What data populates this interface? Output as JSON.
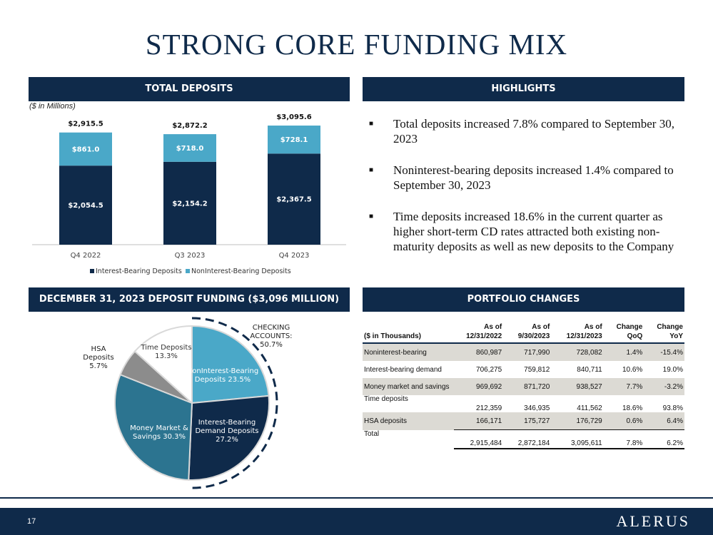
{
  "title": "STRONG CORE FUNDING MIX",
  "sections": {
    "total_deposits": "TOTAL DEPOSITS",
    "highlights": "HIGHLIGHTS",
    "deposit_funding": "DECEMBER 31, 2023 DEPOSIT FUNDING ($3,096 MILLION)",
    "portfolio_changes": "PORTFOLIO CHANGES"
  },
  "units_note": "($ in Millions)",
  "highlights": [
    "Total deposits increased 7.8% compared to September 30, 2023",
    "Noninterest-bearing deposits increased 1.4% compared to September 30, 2023",
    "Time deposits increased 18.6% in the current quarter as higher short-term CD rates attracted both existing non-maturity deposits as well as new deposits to the Company"
  ],
  "chart_data": [
    {
      "type": "bar",
      "stacked": true,
      "categories": [
        "Q4 2022",
        "Q3 2023",
        "Q4 2023"
      ],
      "series": [
        {
          "name": "Interest-Bearing Deposits",
          "color": "#0f2a4a",
          "values": [
            2054.5,
            2154.2,
            2367.5
          ],
          "labels": [
            "$2,054.5",
            "$2,154.2",
            "$2,367.5"
          ]
        },
        {
          "name": "NonInterest-Bearing Deposits",
          "color": "#4aa8c8",
          "values": [
            861.0,
            718.0,
            728.1
          ],
          "labels": [
            "$861.0",
            "$718.0",
            "$728.1"
          ]
        }
      ],
      "totals": [
        "$2,915.5",
        "$2,872.2",
        "$3,095.6"
      ],
      "ylim": [
        0,
        3300
      ],
      "legend": "bottom"
    },
    {
      "type": "pie",
      "slices": [
        {
          "name": "NonInterest-Bearing Deposits",
          "label": "NonInterest-Bearing Deposits 23.5%",
          "value": 23.5,
          "color": "#4aa8c8"
        },
        {
          "name": "Interest-Bearing Demand Deposits",
          "label": "Interest-Bearing Demand Deposits 27.2%",
          "value": 27.2,
          "color": "#0f2a4a"
        },
        {
          "name": "Money Market & Savings",
          "label": "Money Market & Savings 30.3%",
          "value": 30.3,
          "color": "#2c7490"
        },
        {
          "name": "HSA Deposits",
          "label": "HSA Deposits 5.7%",
          "value": 5.7,
          "color": "#8c8c8c"
        },
        {
          "name": "Time Deposits",
          "label": "Time Deposits 13.3%",
          "value": 13.3,
          "color": "#ffffff"
        }
      ],
      "annotation": "CHECKING ACCOUNTS: 50.7%"
    }
  ],
  "portfolio": {
    "headers": [
      "($ in Thousands)",
      "As of 12/31/2022",
      "As of 9/30/2023",
      "As of 12/31/2023",
      "Change QoQ",
      "Change YoY"
    ],
    "rows": [
      {
        "label": "Noninterest-bearing",
        "cells": [
          "860,987",
          "717,990",
          "728,082",
          "1.4%",
          "-15.4%"
        ]
      },
      {
        "label": "Interest-bearing demand",
        "cells": [
          "706,275",
          "759,812",
          "840,711",
          "10.6%",
          "19.0%"
        ]
      },
      {
        "label": "Money market and savings",
        "cells": [
          "969,692",
          "871,720",
          "938,527",
          "7.7%",
          "-3.2%"
        ]
      },
      {
        "label": "Time deposits",
        "cells": [
          "212,359",
          "346,935",
          "411,562",
          "18.6%",
          "93.8%"
        ]
      },
      {
        "label": "HSA deposits",
        "cells": [
          "166,171",
          "175,727",
          "176,729",
          "0.6%",
          "6.4%"
        ]
      },
      {
        "label": "Total",
        "cells": [
          "2,915,484",
          "2,872,184",
          "3,095,611",
          "7.8%",
          "6.2%"
        ]
      }
    ]
  },
  "footer": {
    "page": "17",
    "logo": "ALERUS"
  },
  "colors": {
    "navy": "#0f2a4a",
    "teal": "#4aa8c8",
    "mid_teal": "#2c7490",
    "gray": "#8c8c8c"
  }
}
